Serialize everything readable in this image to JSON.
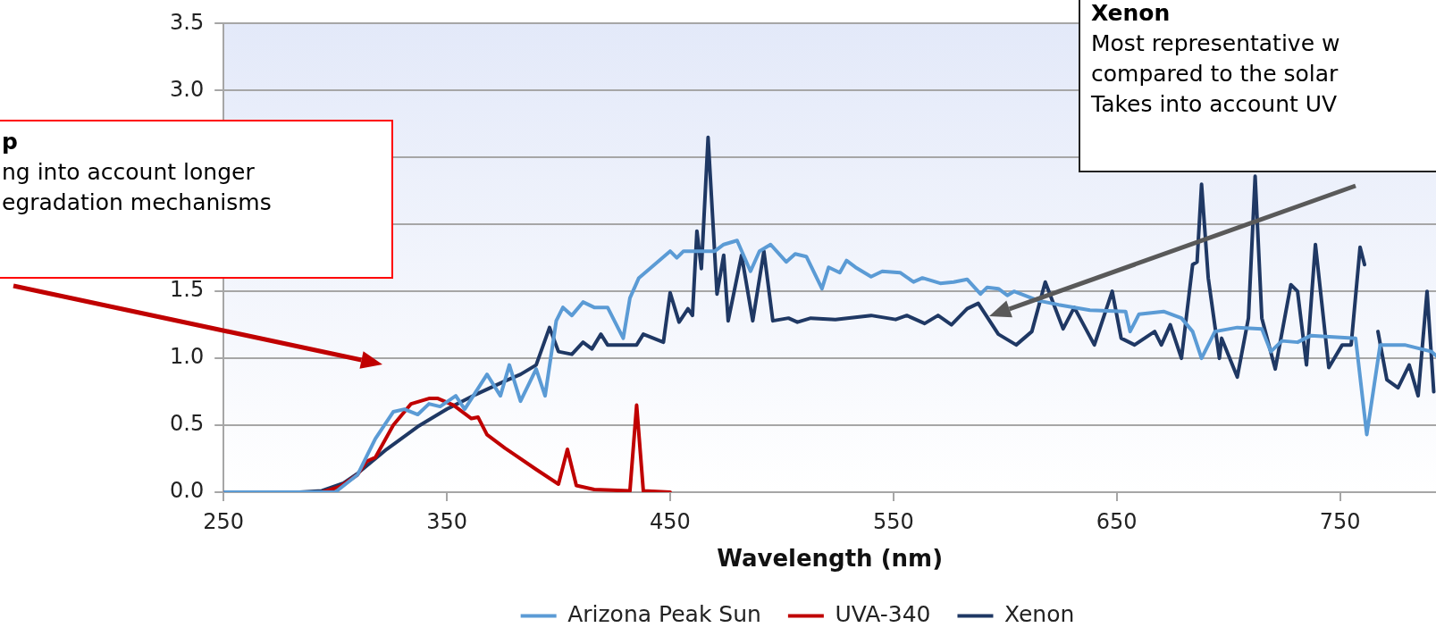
{
  "chart_data": {
    "type": "line",
    "xlabel": "Wavelength (nm)",
    "xlim": [
      250,
      793
    ],
    "xticks": [
      250,
      350,
      450,
      550,
      650,
      750
    ],
    "ylim": [
      0,
      3.5
    ],
    "yticks": [
      {
        "value": 0,
        "label": "0.0"
      },
      {
        "value": 0.5,
        "label": "0.5"
      },
      {
        "value": 1,
        "label": "1.0"
      },
      {
        "value": 1.5,
        "label": "1.5"
      },
      {
        "value": 2,
        "label": null
      },
      {
        "value": 2.5,
        "label": null
      },
      {
        "value": 3,
        "label": "3.0"
      },
      {
        "value": 3.5,
        "label": "3.5"
      }
    ],
    "grid": "y",
    "legend": "bottom",
    "marker": "none",
    "line_style": "solid",
    "series": [
      {
        "name": "Arizona Peak Sun",
        "color": "#5b9bd5",
        "x": [
          250,
          300,
          310,
          318,
          326,
          331,
          337,
          342,
          347,
          354,
          358,
          363,
          368,
          374,
          378,
          383,
          390,
          394,
          399,
          402,
          406,
          411,
          416,
          422,
          429,
          432,
          436,
          443,
          450,
          453,
          456,
          462,
          470,
          474,
          480,
          486,
          490,
          495,
          502,
          506,
          511,
          518,
          521,
          526,
          529,
          533,
          540,
          545,
          553,
          559,
          563,
          571,
          577,
          583,
          589,
          592,
          597,
          601,
          604,
          615,
          624,
          638,
          654,
          656,
          660,
          671,
          679,
          684,
          688,
          694,
          704,
          715,
          719,
          724,
          731,
          737,
          757,
          762,
          768,
          779,
          791,
          793
        ],
        "values": [
          0,
          0,
          0.13,
          0.4,
          0.6,
          0.62,
          0.58,
          0.66,
          0.64,
          0.72,
          0.62,
          0.75,
          0.88,
          0.72,
          0.95,
          0.68,
          0.92,
          0.72,
          1.28,
          1.38,
          1.32,
          1.42,
          1.38,
          1.38,
          1.15,
          1.45,
          1.6,
          1.7,
          1.8,
          1.75,
          1.8,
          1.8,
          1.8,
          1.85,
          1.88,
          1.65,
          1.8,
          1.85,
          1.72,
          1.78,
          1.76,
          1.52,
          1.68,
          1.64,
          1.73,
          1.68,
          1.61,
          1.65,
          1.64,
          1.57,
          1.6,
          1.56,
          1.57,
          1.59,
          1.48,
          1.53,
          1.52,
          1.47,
          1.5,
          1.43,
          1.4,
          1.36,
          1.35,
          1.2,
          1.33,
          1.35,
          1.3,
          1.2,
          1.0,
          1.2,
          1.23,
          1.22,
          1.05,
          1.13,
          1.12,
          1.17,
          1.15,
          0.43,
          1.1,
          1.1,
          1.05,
          1.02
        ]
      },
      {
        "name": "UVA-340",
        "color": "#c00000",
        "x": [
          250,
          294,
          302,
          310,
          314,
          318,
          326,
          334,
          342,
          346,
          353,
          361,
          364,
          368,
          376,
          390,
          400,
          404,
          408,
          416,
          432,
          435,
          438,
          450
        ],
        "values": [
          0,
          0,
          0.04,
          0.13,
          0.23,
          0.26,
          0.5,
          0.66,
          0.7,
          0.7,
          0.65,
          0.55,
          0.56,
          0.43,
          0.33,
          0.17,
          0.06,
          0.32,
          0.05,
          0.02,
          0.01,
          0.65,
          0.01,
          0
        ]
      },
      {
        "name": "Xenon",
        "color": "#1f3864",
        "x": [
          250,
          284,
          294,
          304,
          310,
          323,
          337,
          350,
          363,
          376,
          383,
          390,
          396,
          400,
          406,
          411,
          415,
          419,
          422,
          435,
          438,
          447,
          450,
          454,
          458,
          460,
          462,
          464,
          467,
          471,
          474,
          476,
          482,
          487,
          492,
          496,
          503,
          507,
          513,
          524,
          540,
          551,
          556,
          564,
          570,
          576,
          583,
          588,
          597,
          605,
          612,
          618,
          626,
          631,
          640,
          648,
          652,
          658,
          667,
          670,
          674,
          679,
          684,
          686,
          688,
          691,
          696,
          697,
          704,
          709,
          712,
          715,
          721,
          728,
          731,
          735,
          739,
          745,
          751,
          755,
          759,
          761,
          763,
          767,
          771,
          776,
          781,
          785,
          789,
          792
        ],
        "values": [
          0,
          0,
          0.01,
          0.07,
          0.14,
          0.32,
          0.49,
          0.62,
          0.73,
          0.83,
          0.88,
          0.95,
          1.23,
          1.05,
          1.03,
          1.12,
          1.07,
          1.18,
          1.1,
          1.1,
          1.18,
          1.12,
          1.49,
          1.27,
          1.37,
          1.32,
          1.95,
          1.67,
          2.65,
          1.48,
          1.77,
          1.28,
          1.77,
          1.28,
          1.8,
          1.28,
          1.3,
          1.27,
          1.3,
          1.29,
          1.32,
          1.29,
          1.32,
          1.26,
          1.32,
          1.25,
          1.37,
          1.41,
          1.18,
          1.1,
          1.2,
          1.57,
          1.22,
          1.38,
          1.1,
          1.5,
          1.15,
          1.1,
          1.2,
          1.1,
          1.25,
          1.0,
          1.7,
          1.72,
          2.3,
          1.6,
          1.0,
          1.15,
          0.86,
          1.3,
          2.36,
          1.3,
          0.92,
          1.55,
          1.5,
          0.95,
          1.85,
          0.93,
          1.1,
          1.1,
          1.83,
          1.7,
          null,
          1.2,
          0.84,
          0.78,
          0.95,
          0.72,
          1.5,
          0.75
        ]
      }
    ],
    "annotations": [
      "p\nng into account longer\negradation mechanisms",
      "Xenon\nMost representative w\ncompared to the solar\nTakes into account UV"
    ]
  }
}
